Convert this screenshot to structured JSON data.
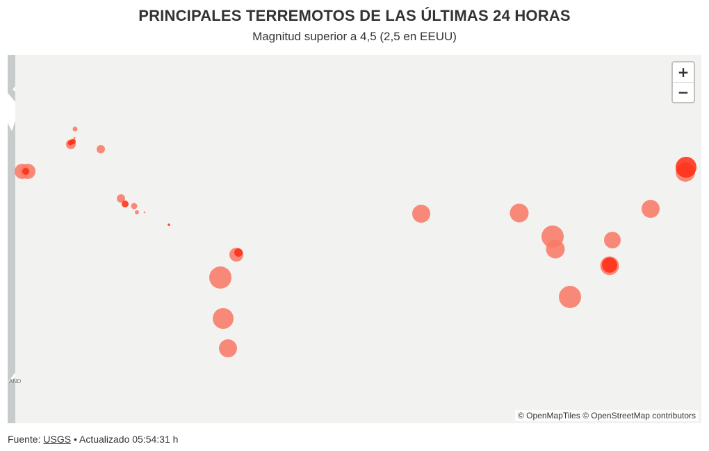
{
  "header": {
    "title": "PRINCIPALES TERREMOTOS DE LAS ÚLTIMAS 24 HORAS",
    "subtitle": "Magnitud superior a 4,5 (2,5 en EEUU)"
  },
  "map": {
    "zoom_in_label": "+",
    "zoom_out_label": "−",
    "land_label": "AND",
    "attribution": {
      "openmaptiles": "© OpenMapTiles",
      "openstreetmap": "© OpenStreetMap contributors"
    },
    "colors": {
      "background": "#f2f2f0",
      "land": "#c8cbcc",
      "quake_fill": "#f87a66",
      "quake_recent": "#ff2a12"
    }
  },
  "footer": {
    "source_label": "Fuente:",
    "source_link": "USGS",
    "separator": "•",
    "updated_label": "Actualizado 05:54:31 h"
  }
}
